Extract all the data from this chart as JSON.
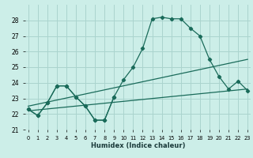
{
  "xlabel": "Humidex (Indice chaleur)",
  "background_color": "#cceee8",
  "grid_color": "#aad4ce",
  "line_color": "#1a6b5a",
  "x_values": [
    0,
    1,
    2,
    3,
    4,
    5,
    6,
    7,
    8,
    9,
    10,
    11,
    12,
    13,
    14,
    15,
    16,
    17,
    18,
    19,
    20,
    21,
    22,
    23
  ],
  "series_main": [
    22.3,
    21.9,
    22.7,
    23.8,
    23.8,
    23.1,
    22.5,
    21.6,
    21.6,
    23.1,
    24.2,
    25.0,
    26.2,
    28.1,
    28.2,
    28.1,
    28.1,
    27.5,
    27.0,
    25.5,
    24.4,
    23.6,
    24.1,
    23.5
  ],
  "series_partial": [
    22.3,
    21.9,
    22.7,
    23.8,
    23.8,
    23.1,
    22.5,
    21.6,
    21.6,
    23.1
  ],
  "series_partial_x": [
    0,
    1,
    2,
    3,
    4,
    5,
    6,
    7,
    8,
    9
  ],
  "trend1_x": [
    0,
    23
  ],
  "trend1_y": [
    22.2,
    23.6
  ],
  "trend2_x": [
    0,
    23
  ],
  "trend2_y": [
    22.5,
    25.5
  ],
  "ylim": [
    21,
    29
  ],
  "xlim": [
    -0.3,
    23.3
  ],
  "yticks": [
    21,
    22,
    23,
    24,
    25,
    26,
    27,
    28
  ],
  "xtick_labels": [
    "0",
    "1",
    "2",
    "3",
    "4",
    "5",
    "6",
    "7",
    "8",
    "9",
    "10",
    "11",
    "12",
    "13",
    "14",
    "15",
    "16",
    "17",
    "18",
    "19",
    "20",
    "21",
    "22",
    "23"
  ]
}
